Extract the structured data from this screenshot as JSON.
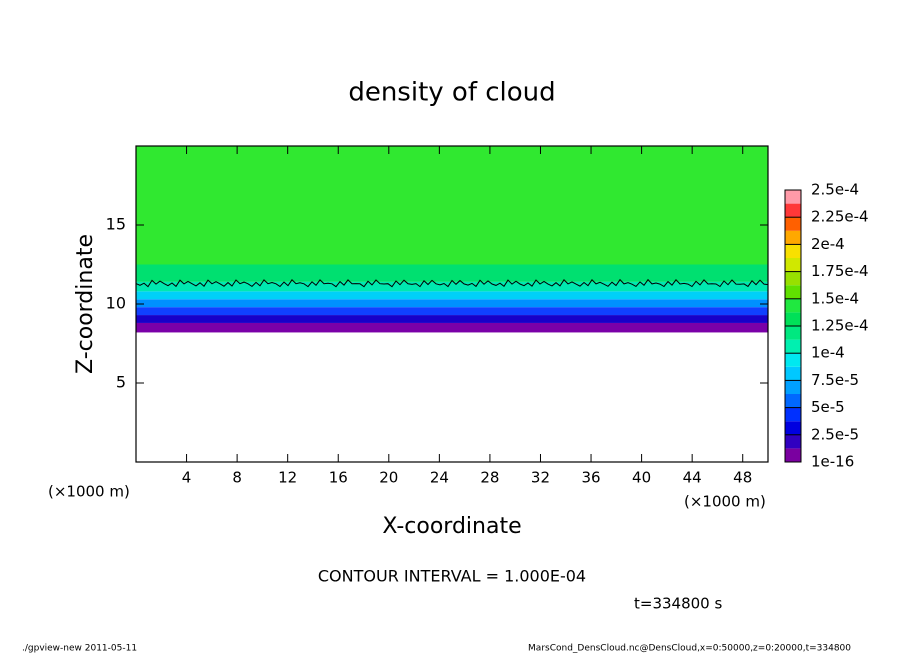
{
  "chart_data": {
    "type": "contour",
    "title": "density of cloud",
    "x_label": "X-coordinate",
    "y_label": "Z-coordinate",
    "x_unit": "(×1000 m)",
    "x_unit_right": "(×1000 m)",
    "xlim": [
      0,
      50
    ],
    "ylim": [
      0,
      20
    ],
    "xticks": [
      4,
      8,
      12,
      16,
      20,
      24,
      28,
      32,
      36,
      40,
      44,
      48
    ],
    "yticks": [
      5,
      10,
      15
    ],
    "bands": [
      {
        "from": 8.2,
        "to": 8.8,
        "color": "#7a00a8"
      },
      {
        "from": 8.8,
        "to": 9.3,
        "color": "#1800c8"
      },
      {
        "from": 9.3,
        "to": 9.8,
        "color": "#1040ff"
      },
      {
        "from": 9.8,
        "to": 10.3,
        "color": "#0090ff"
      },
      {
        "from": 10.3,
        "to": 10.8,
        "color": "#00d0f8"
      },
      {
        "from": 10.8,
        "to": 11.4,
        "color": "#00e8b0"
      },
      {
        "from": 11.4,
        "to": 12.5,
        "color": "#00e070"
      },
      {
        "from": 12.5,
        "to": 20,
        "color": "#30e830"
      }
    ],
    "contour_z": 11.3,
    "clim": [
      1e-16,
      0.00025
    ],
    "colormap": [
      "#7a00a0",
      "#3000c0",
      "#0000e0",
      "#0030ff",
      "#0068ff",
      "#00a0ff",
      "#00c8ff",
      "#00e8f0",
      "#00f0b0",
      "#00e880",
      "#00e058",
      "#20e840",
      "#60e000",
      "#98e000",
      "#d0e800",
      "#f8e000",
      "#ffa800",
      "#ff6000",
      "#ff3838",
      "#ff9aa8"
    ],
    "cticks": [
      1e-16,
      {
        "value": 2.5e-05,
        "label": "2.5e-5"
      },
      {
        "value": 5e-05,
        "label": "5e-5"
      },
      {
        "value": 7.5e-05,
        "label": "7.5e-5"
      },
      {
        "value": 0.0001,
        "label": "1e-4"
      },
      {
        "value": 0.000125,
        "label": "1.25e-4"
      },
      {
        "value": 0.00015,
        "label": "1.5e-4"
      },
      {
        "value": 0.000175,
        "label": "1.75e-4"
      },
      {
        "value": 0.0002,
        "label": "2e-4"
      },
      {
        "value": 0.000225,
        "label": "2.25e-4"
      },
      {
        "value": 0.00025,
        "label": "2.5e-4"
      }
    ],
    "contour_note": "CONTOUR INTERVAL = 1.000E-04",
    "time_note": "t=334800 s",
    "footer_left": "./gpview-new  2011-05-11",
    "footer_right": "MarsCond_DensCloud.nc@DensCloud,x=0:50000,z=0:20000,t=334800"
  }
}
